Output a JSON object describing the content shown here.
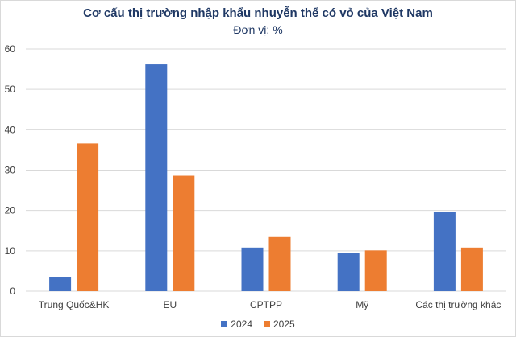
{
  "chart_data": {
    "type": "bar",
    "title": "Cơ cấu thị trường nhập khẩu nhuyễn thể có vỏ của Việt Nam",
    "subtitle": "Đơn vị: %",
    "xlabel": "",
    "ylabel": "",
    "categories": [
      "Trung Quốc&HK",
      "EU",
      "CPTPP",
      "Mỹ",
      "Các thị trường khác"
    ],
    "series": [
      {
        "name": "2024",
        "color": "#4472c4",
        "values": [
          3.5,
          56.2,
          10.8,
          9.4,
          19.6
        ]
      },
      {
        "name": "2025",
        "color": "#ed7d31",
        "values": [
          36.6,
          28.6,
          13.4,
          10.1,
          10.8
        ]
      }
    ],
    "ylim": [
      0,
      60
    ],
    "yticks": [
      "0",
      "10",
      "20",
      "30",
      "40",
      "50",
      "60"
    ],
    "grid": true,
    "legend_position": "bottom"
  }
}
